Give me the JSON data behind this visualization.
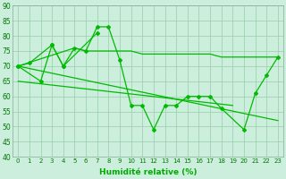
{
  "series_main_x": [
    0,
    1,
    3,
    4,
    5,
    6,
    7,
    8,
    9,
    10,
    11,
    12,
    13,
    14,
    15,
    16,
    17,
    18,
    20,
    21,
    22,
    23
  ],
  "series_main_y": [
    70,
    71,
    77,
    70,
    76,
    75,
    83,
    83,
    72,
    57,
    57,
    49,
    57,
    57,
    60,
    60,
    60,
    56,
    49,
    61,
    67,
    73
  ],
  "series_short_x": [
    0,
    2,
    3,
    4,
    7
  ],
  "series_short_y": [
    70,
    65,
    77,
    70,
    81
  ],
  "flat_line_x": [
    0,
    5,
    6,
    7,
    8,
    9,
    10,
    11,
    12,
    13,
    14,
    15,
    16,
    17,
    18,
    19,
    20,
    21,
    22,
    23
  ],
  "flat_line_y": [
    70,
    76,
    75,
    75,
    75,
    75,
    75,
    74,
    74,
    74,
    74,
    74,
    74,
    74,
    73,
    73,
    73,
    73,
    73,
    73
  ],
  "trend1_x": [
    0,
    23
  ],
  "trend1_y": [
    70,
    52
  ],
  "trend2_x": [
    0,
    19
  ],
  "trend2_y": [
    65,
    57
  ],
  "line_color": "#00bb00",
  "bg_color": "#cceedd",
  "grid_color": "#99ccaa",
  "ylim": [
    40,
    90
  ],
  "xlim": [
    -0.5,
    23.5
  ],
  "xlabel": "Humidité relative (%)",
  "xlabel_color": "#00aa00"
}
